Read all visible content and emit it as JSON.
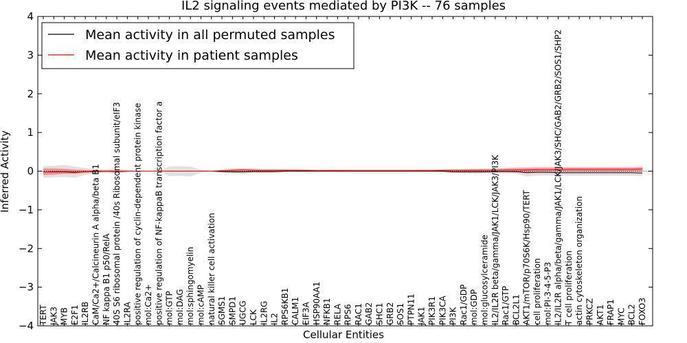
{
  "chart_data": {
    "type": "line",
    "title": "IL2 signaling events mediated by PI3K -- 76 samples",
    "xlabel": "Cellular Entities",
    "ylabel": "Inferred Activity",
    "ylim": [
      -4,
      4
    ],
    "yticks": [
      "−4",
      "−3",
      "−2",
      "−1",
      "0",
      "1",
      "2",
      "3",
      "4"
    ],
    "yticks_values": [
      -4,
      -3,
      -2,
      -1,
      0,
      1,
      2,
      3,
      4
    ],
    "legend_position": "top-left",
    "categories": [
      "TERT",
      "JAK3",
      "MYB",
      "E2F1",
      "IL2RB",
      "CaM/Ca2+/Calcineurin A alpha/beta B1",
      "NF kappa B1 p50/RelA",
      "40S S6 ribosomal protein /40s Ribosomal subunit/eIF3",
      "IL2RA",
      "positive regulation of cyclin-dependent protein kinase",
      "mol:Ca2+",
      "positive regulation of NF-kappaB transcription factor a",
      "mol:GTP",
      "mol:DAG",
      "mol:sphingomyelin",
      "mol:cAMP",
      "natural killer cell activation",
      "SGMS1",
      "SMPD1",
      "UGCG",
      "LCK",
      "IL2RG",
      "IL2",
      "RPS6KB1",
      "CALM1",
      "EIF3A",
      "HSP90AA1",
      "NFKB1",
      "RELA",
      "RPS6",
      "RAC1",
      "GAB2",
      "SHC1",
      "GRB2",
      "SOS1",
      "PTPN11",
      "JAK1",
      "PIK3R1",
      "PIK3CA",
      "PI3K",
      "Rac1/GDP",
      "mol:GDP",
      "mol:glucosylceramide",
      "IL2/IL2R beta/gamma/JAK1/LCK/JAK3/PI3K",
      "Rac1/GTP",
      "BCL2L1",
      "AKT1/mTOR/p70S6K/Hsp90/TERT",
      "cell proliferation",
      "mol:PI-3-4-5-P3",
      "IL2/IL2R alpha/beta/gamma/JAK1/LCK/JAK3/SHC/GAB2/GRB2/SOS1/SHP2",
      "T cell proliferation",
      "actin cytoskeleton organization",
      "PRKCZ",
      "AKT1",
      "FRAP1",
      "MYC",
      "BCL2",
      "FOXO3"
    ],
    "series": [
      {
        "name": "Mean activity in all permuted samples",
        "color": "#000000",
        "values": [
          -0.02,
          -0.02,
          -0.02,
          -0.03,
          -0.01,
          -0.01,
          0.0,
          -0.01,
          0.0,
          0.0,
          0.0,
          0.0,
          0.0,
          0.0,
          0.0,
          0.0,
          0.0,
          -0.01,
          -0.02,
          -0.02,
          -0.01,
          -0.01,
          -0.01,
          0.0,
          0.0,
          0.0,
          0.0,
          0.0,
          0.0,
          0.0,
          0.0,
          0.0,
          0.0,
          0.0,
          0.0,
          0.0,
          0.0,
          0.0,
          0.0,
          -0.02,
          -0.02,
          -0.02,
          -0.02,
          -0.01,
          -0.01,
          -0.01,
          -0.04,
          -0.03,
          -0.03,
          -0.04,
          -0.04,
          -0.04,
          -0.04,
          -0.04,
          -0.04,
          -0.04,
          -0.04,
          -0.05
        ],
        "band_low": [
          -0.17,
          -0.16,
          -0.15,
          -0.17,
          -0.1,
          -0.05,
          -0.05,
          -0.07,
          -0.04,
          0.0,
          0.0,
          0.0,
          -0.13,
          -0.12,
          -0.14,
          -0.04,
          -0.01,
          -0.03,
          -0.06,
          -0.08,
          -0.05,
          -0.05,
          -0.05,
          -0.03,
          -0.03,
          -0.02,
          -0.02,
          -0.03,
          -0.03,
          -0.02,
          -0.02,
          -0.02,
          -0.02,
          -0.02,
          -0.02,
          -0.02,
          -0.03,
          -0.03,
          -0.03,
          -0.05,
          -0.06,
          -0.06,
          -0.06,
          -0.05,
          -0.06,
          -0.07,
          -0.14,
          -0.11,
          -0.11,
          -0.12,
          -0.12,
          -0.12,
          -0.12,
          -0.12,
          -0.12,
          -0.12,
          -0.12,
          -0.13
        ],
        "band_high": [
          0.13,
          0.14,
          0.16,
          0.12,
          0.08,
          0.05,
          0.05,
          0.07,
          0.04,
          0.0,
          0.0,
          0.0,
          0.12,
          0.13,
          0.12,
          0.04,
          0.01,
          0.01,
          0.03,
          0.04,
          0.03,
          0.03,
          0.03,
          0.03,
          0.03,
          0.02,
          0.02,
          0.03,
          0.03,
          0.02,
          0.02,
          0.02,
          0.02,
          0.02,
          0.02,
          0.02,
          0.03,
          0.03,
          0.03,
          0.03,
          0.04,
          0.04,
          0.04,
          0.03,
          0.04,
          0.05,
          0.07,
          0.06,
          0.06,
          0.06,
          0.06,
          0.06,
          0.06,
          0.06,
          0.06,
          0.06,
          0.06,
          0.05
        ]
      },
      {
        "name": "Mean activity in patient samples",
        "color": "#ff0000",
        "values": [
          -0.02,
          -0.01,
          -0.01,
          -0.02,
          -0.01,
          0.0,
          0.0,
          0.0,
          0.0,
          0.0,
          0.0,
          0.0,
          0.0,
          0.0,
          0.0,
          0.0,
          0.0,
          0.01,
          0.02,
          0.03,
          0.02,
          0.02,
          0.02,
          0.02,
          0.02,
          0.02,
          0.01,
          0.01,
          0.01,
          0.01,
          0.01,
          0.01,
          0.01,
          0.01,
          0.01,
          0.01,
          0.01,
          0.01,
          0.02,
          0.02,
          0.02,
          0.02,
          0.02,
          0.02,
          0.03,
          0.03,
          0.03,
          0.04,
          0.04,
          0.04,
          0.05,
          0.05,
          0.05,
          0.05,
          0.05,
          0.05,
          0.05,
          0.06
        ],
        "band_low": [
          -0.1,
          -0.09,
          -0.07,
          -0.07,
          -0.05,
          -0.02,
          -0.02,
          -0.02,
          -0.01,
          0.0,
          0.0,
          0.0,
          -0.01,
          -0.01,
          -0.01,
          0.0,
          0.0,
          -0.01,
          -0.02,
          -0.02,
          -0.02,
          -0.02,
          -0.02,
          -0.01,
          -0.01,
          -0.01,
          -0.01,
          -0.01,
          -0.01,
          -0.01,
          -0.01,
          -0.01,
          -0.01,
          -0.01,
          -0.01,
          -0.01,
          -0.01,
          -0.01,
          -0.01,
          -0.02,
          -0.02,
          -0.02,
          -0.02,
          -0.02,
          -0.02,
          -0.03,
          -0.04,
          -0.01,
          -0.01,
          -0.01,
          -0.01,
          -0.01,
          -0.01,
          -0.01,
          -0.01,
          -0.01,
          -0.01,
          -0.01
        ],
        "band_high": [
          0.07,
          0.07,
          0.06,
          0.04,
          0.03,
          0.02,
          0.02,
          0.02,
          0.01,
          0.0,
          0.0,
          0.0,
          0.01,
          0.01,
          0.01,
          0.0,
          0.0,
          0.03,
          0.06,
          0.07,
          0.06,
          0.05,
          0.05,
          0.05,
          0.05,
          0.04,
          0.04,
          0.04,
          0.04,
          0.04,
          0.04,
          0.04,
          0.04,
          0.04,
          0.04,
          0.04,
          0.04,
          0.04,
          0.05,
          0.05,
          0.05,
          0.06,
          0.06,
          0.06,
          0.08,
          0.09,
          0.09,
          0.1,
          0.1,
          0.1,
          0.1,
          0.1,
          0.1,
          0.1,
          0.1,
          0.1,
          0.1,
          0.11
        ]
      }
    ]
  }
}
